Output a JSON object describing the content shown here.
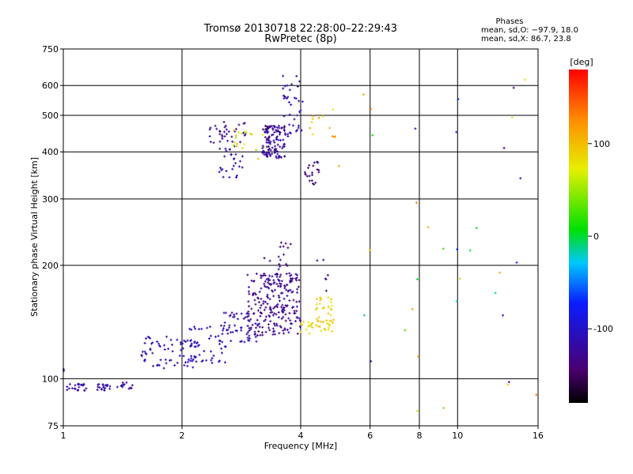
{
  "chart_data": {
    "type": "scatter",
    "title": "Tromsø 20130718 22:28:00–22:29:43",
    "subtitle": "RwPretec (8p)",
    "xlabel": "Frequency [MHz]",
    "ylabel": "Stationary phase Virtual Height [km]",
    "x_scale": "log",
    "y_scale": "log",
    "xlim": [
      1,
      16
    ],
    "ylim": [
      75,
      750
    ],
    "x_ticks": [
      1,
      2,
      4,
      6,
      8,
      10,
      16
    ],
    "y_ticks": [
      75,
      100,
      200,
      300,
      400,
      500,
      600,
      750
    ],
    "grid": true,
    "phase_stats": {
      "heading": "Phases",
      "line1": "mean, sd,O: −97.9, 18.0",
      "line2": "mean, sd,X:  86.7, 23.8"
    },
    "colorbar": {
      "label": "[deg]",
      "range": [
        -180,
        180
      ],
      "ticks": [
        100,
        0,
        -100
      ],
      "colormap": "rainbow"
    },
    "point_groups": [
      {
        "x_range": [
          1.0,
          1.05
        ],
        "y_range": [
          103,
          106
        ],
        "phase_range": [
          -120,
          -100
        ],
        "count": 2
      },
      {
        "x_range": [
          1.02,
          1.15
        ],
        "y_range": [
          93,
          97
        ],
        "phase_range": [
          -130,
          -105
        ],
        "count": 22
      },
      {
        "x_range": [
          1.2,
          1.32
        ],
        "y_range": [
          93,
          97
        ],
        "phase_range": [
          -130,
          -105
        ],
        "count": 20
      },
      {
        "x_range": [
          1.35,
          1.5
        ],
        "y_range": [
          94,
          98
        ],
        "phase_range": [
          -130,
          -105
        ],
        "count": 14
      },
      {
        "x_range": [
          1.58,
          2.2
        ],
        "y_range": [
          106,
          130
        ],
        "phase_range": [
          -125,
          -95
        ],
        "count": 70
      },
      {
        "x_range": [
          2.05,
          2.6
        ],
        "y_range": [
          108,
          138
        ],
        "phase_range": [
          -115,
          -90
        ],
        "count": 45
      },
      {
        "x_range": [
          2.5,
          3.1
        ],
        "y_range": [
          125,
          150
        ],
        "phase_range": [
          -130,
          -95
        ],
        "count": 55
      },
      {
        "x_range": [
          2.9,
          4.0
        ],
        "y_range": [
          130,
          190
        ],
        "phase_range": [
          -145,
          -110
        ],
        "count": 230
      },
      {
        "x_range": [
          3.2,
          3.8
        ],
        "y_range": [
          180,
          230
        ],
        "phase_range": [
          -150,
          -115
        ],
        "count": 22
      },
      {
        "x_range": [
          4.0,
          4.3
        ],
        "y_range": [
          130,
          142
        ],
        "phase_range": [
          60,
          100
        ],
        "count": 14
      },
      {
        "x_range": [
          4.35,
          4.85
        ],
        "y_range": [
          132,
          165
        ],
        "phase_range": [
          65,
          105
        ],
        "count": 42
      },
      {
        "x_range": [
          4.4,
          4.7
        ],
        "y_range": [
          170,
          210
        ],
        "phase_range": [
          -140,
          -110
        ],
        "count": 6
      },
      {
        "x_range": [
          2.35,
          2.9
        ],
        "y_range": [
          420,
          480
        ],
        "phase_range": [
          -140,
          -110
        ],
        "count": 34
      },
      {
        "x_range": [
          2.45,
          2.85
        ],
        "y_range": [
          340,
          415
        ],
        "phase_range": [
          -130,
          -95
        ],
        "count": 28
      },
      {
        "x_range": [
          2.7,
          3.25
        ],
        "y_range": [
          380,
          460
        ],
        "phase_range": [
          40,
          110
        ],
        "count": 22
      },
      {
        "x_range": [
          3.2,
          3.65
        ],
        "y_range": [
          385,
          470
        ],
        "phase_range": [
          -140,
          -105
        ],
        "count": 120
      },
      {
        "x_range": [
          3.6,
          4.05
        ],
        "y_range": [
          430,
          640
        ],
        "phase_range": [
          -130,
          -100
        ],
        "count": 40
      },
      {
        "x_range": [
          4.1,
          4.5
        ],
        "y_range": [
          320,
          380
        ],
        "phase_range": [
          -150,
          -120
        ],
        "count": 22
      },
      {
        "x_range": [
          4.2,
          4.9
        ],
        "y_range": [
          430,
          520
        ],
        "phase_range": [
          60,
          130
        ],
        "count": 12
      },
      {
        "x_range": [
          4.8,
          16
        ],
        "y_range": [
          80,
          700
        ],
        "phase_range": [
          -150,
          140
        ],
        "count": 36
      }
    ]
  }
}
